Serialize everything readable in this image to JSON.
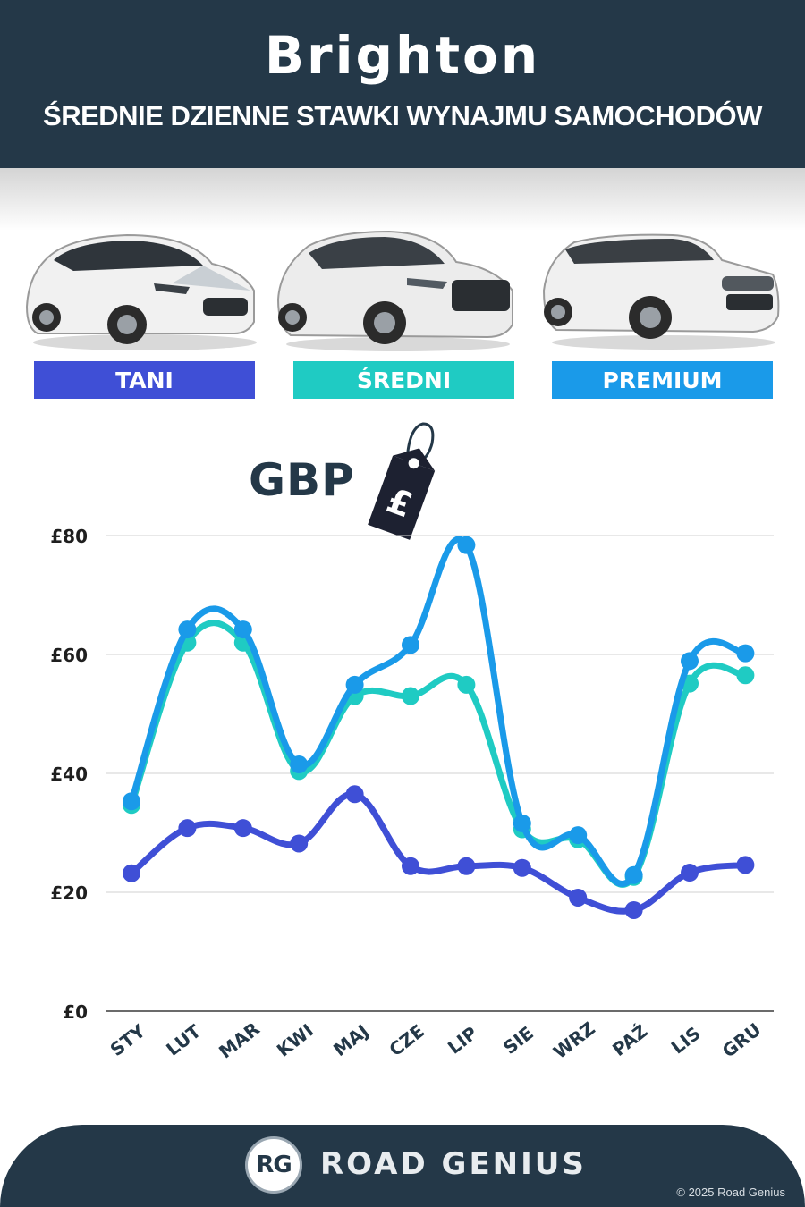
{
  "header": {
    "title": "Brighton",
    "subtitle": "ŚREDNIE DZIENNE STAWKI WYNAJMU SAMOCHODÓW"
  },
  "categories": [
    {
      "label": "TANI",
      "color": "#3f4fd6"
    },
    {
      "label": "ŚREDNI",
      "color": "#1fcbc3"
    },
    {
      "label": "PREMIUM",
      "color": "#1a9ae9"
    }
  ],
  "currency_label": "GBP",
  "tag_symbol": "£",
  "chart_data": {
    "type": "line",
    "categories": [
      "STY",
      "LUT",
      "MAR",
      "KWI",
      "MAJ",
      "CZE",
      "LIP",
      "SIE",
      "WRZ",
      "PAŹ",
      "LIS",
      "GRU"
    ],
    "series": [
      {
        "name": "PREMIUM",
        "color": "#1a9ae9",
        "values": [
          35.3,
          64.2,
          64.2,
          41.5,
          54.9,
          61.6,
          78.4,
          31.6,
          29.6,
          22.9,
          58.9,
          60.2
        ]
      },
      {
        "name": "ŚREDNI",
        "color": "#1fcbc3",
        "values": [
          34.7,
          62.0,
          62.0,
          40.4,
          53.0,
          53.0,
          54.9,
          30.6,
          28.9,
          22.6,
          55.1,
          56.5
        ]
      },
      {
        "name": "TANI",
        "color": "#3f4fd6",
        "values": [
          23.2,
          30.8,
          30.8,
          28.2,
          36.5,
          24.4,
          24.4,
          24.1,
          19.1,
          17.0,
          23.3,
          24.6
        ]
      }
    ],
    "y_ticks": [
      "£0",
      "£20",
      "£40",
      "£60",
      "£80"
    ],
    "ylim": [
      0,
      80
    ],
    "grid": true
  },
  "footer": {
    "logo": "RG",
    "brand": "ROAD GENIUS",
    "copyright": "© 2025 Road Genius"
  }
}
